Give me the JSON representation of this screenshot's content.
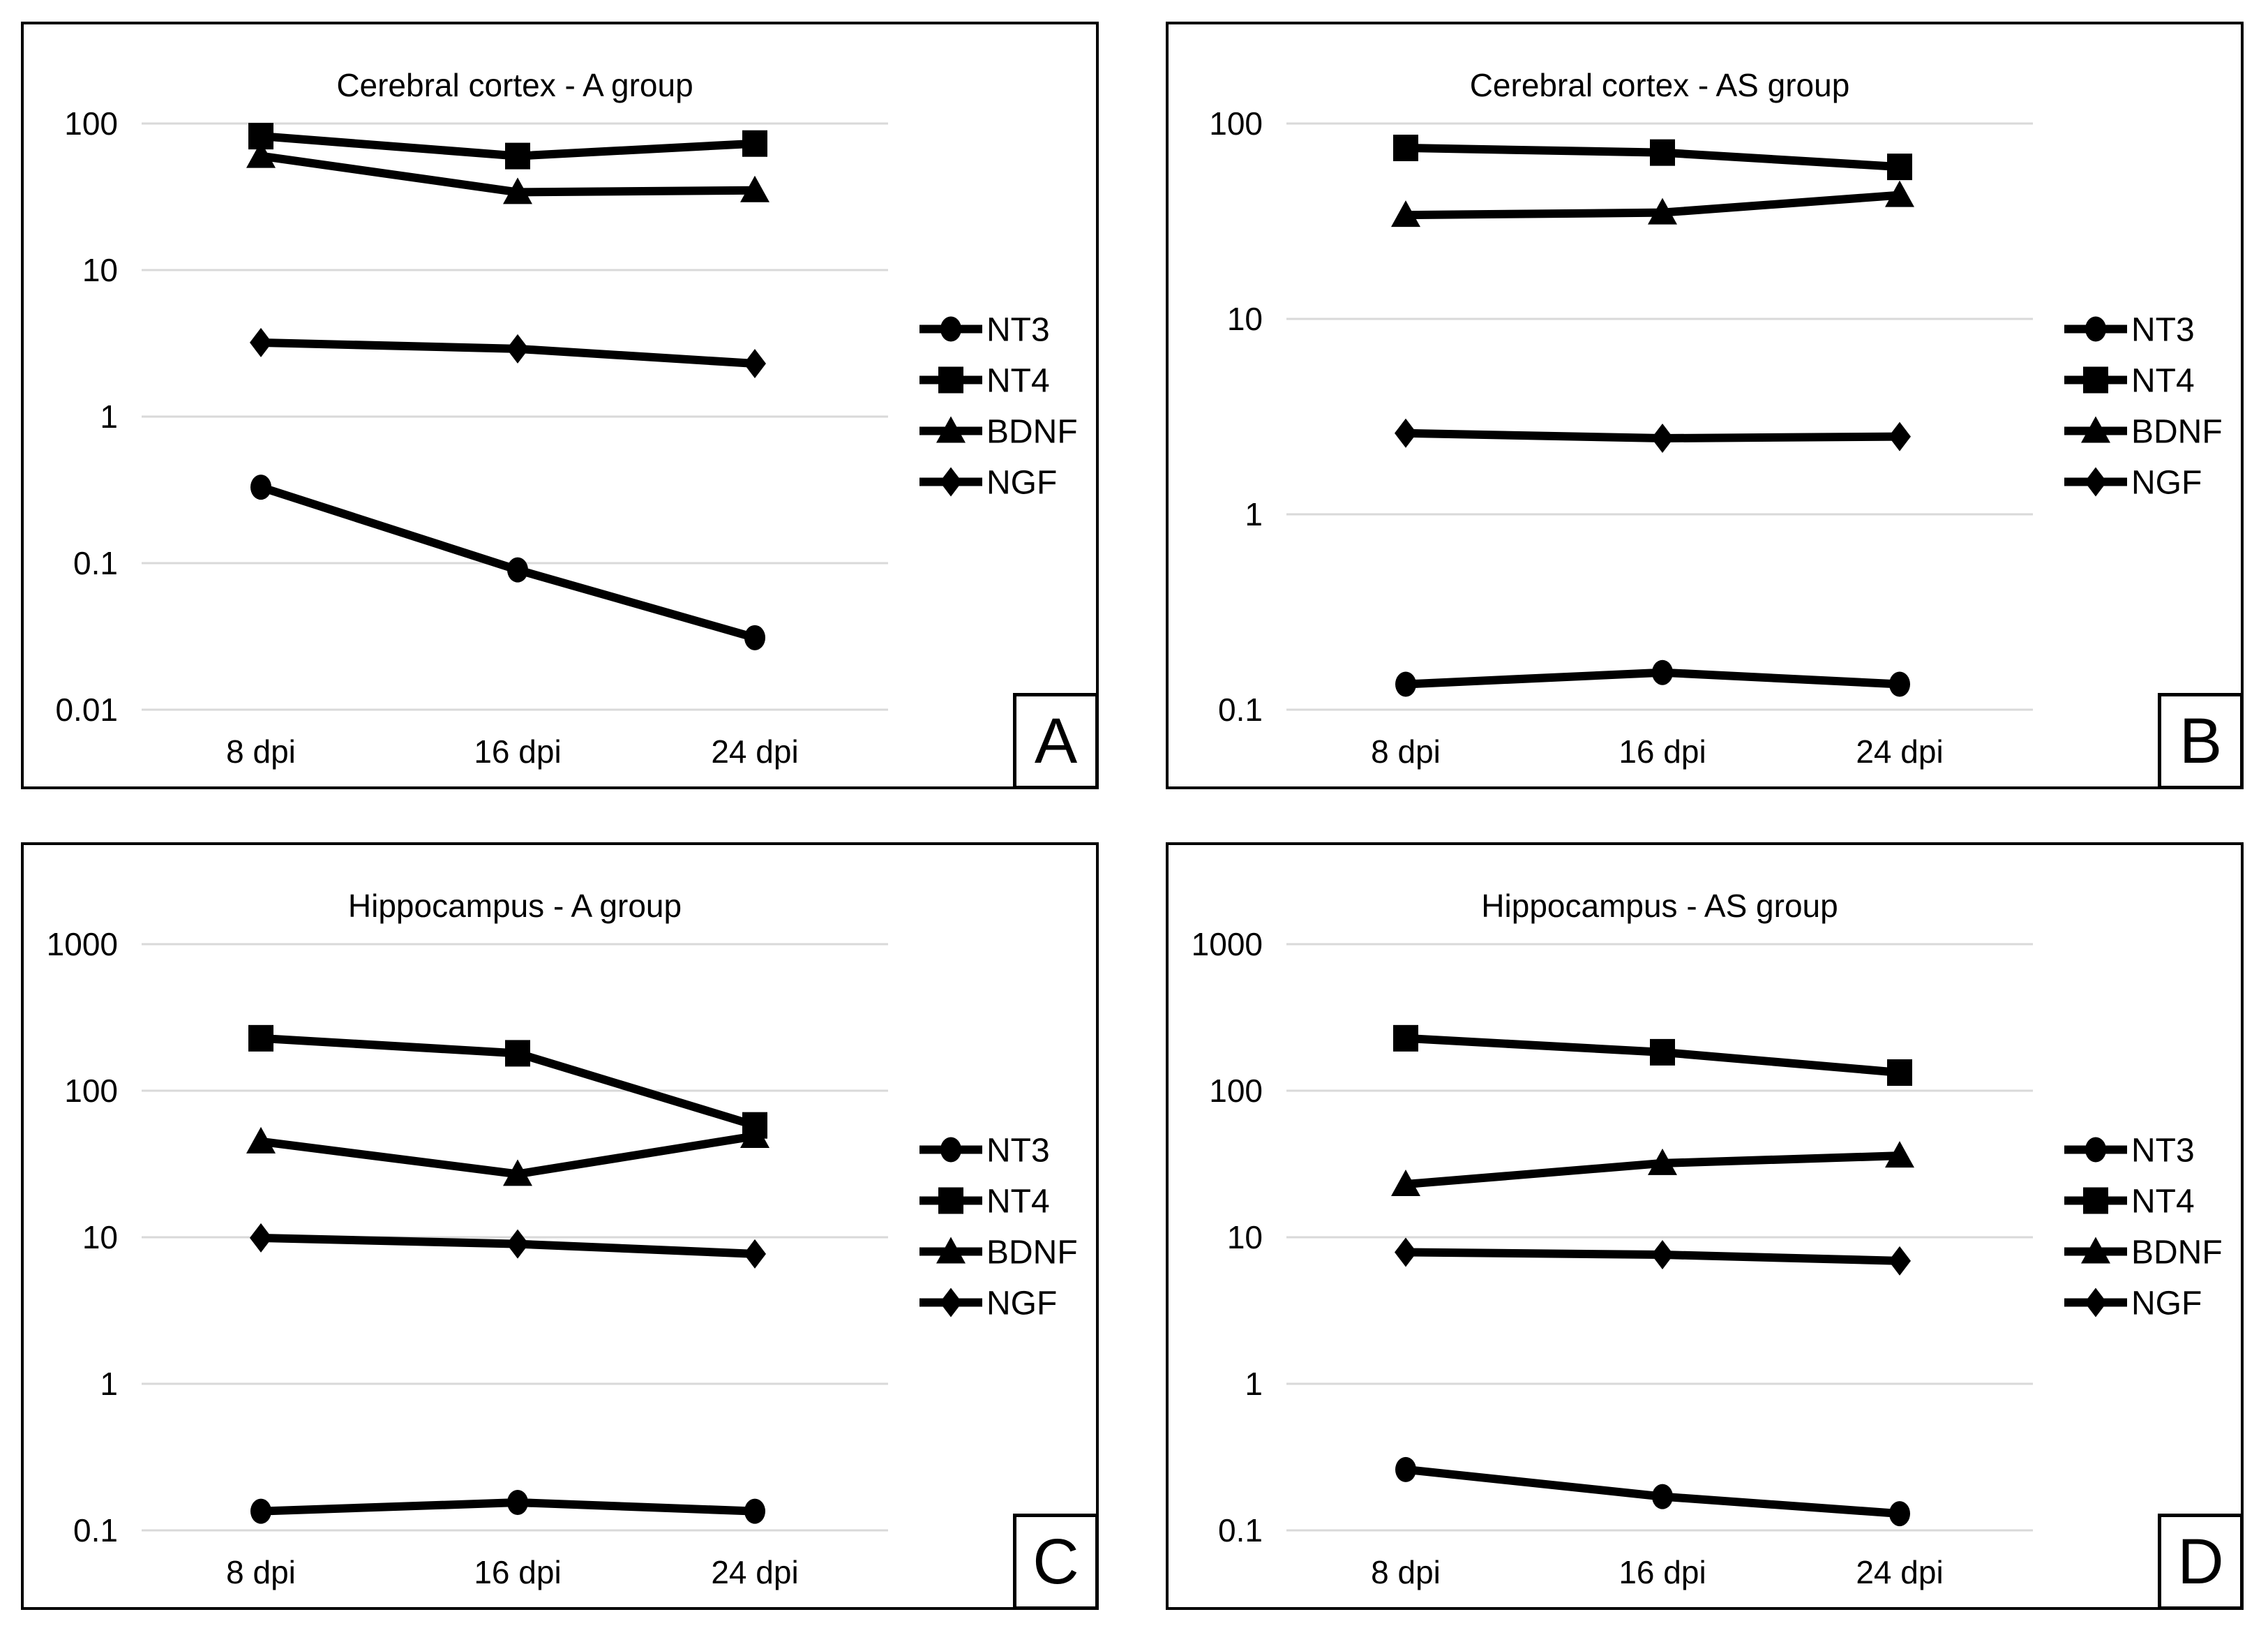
{
  "figure": {
    "background_color": "#ffffff",
    "line_color": "#000000",
    "gridline_color": "#d9d9d9",
    "panel_border_color": "#000000"
  },
  "chart_data": [
    {
      "type": "line",
      "panel_letter": "A",
      "title": "Cerebral cortex - A group",
      "x_categories": [
        "8 dpi",
        "16 dpi",
        "24 dpi"
      ],
      "y_scale": "log",
      "y_ticks": [
        100,
        10,
        1,
        0.1,
        0.01
      ],
      "grid": true,
      "legend_position": "right",
      "series": [
        {
          "name": "NT3",
          "marker": "circle",
          "values": [
            0.33,
            0.09,
            0.031
          ]
        },
        {
          "name": "NT4",
          "marker": "square",
          "values": [
            82,
            60,
            73
          ]
        },
        {
          "name": "BDNF",
          "marker": "triangle",
          "values": [
            60,
            34,
            35
          ]
        },
        {
          "name": "NGF",
          "marker": "diamond",
          "values": [
            3.2,
            2.9,
            2.3
          ]
        }
      ]
    },
    {
      "type": "line",
      "panel_letter": "B",
      "title": "Cerebral cortex - AS group",
      "x_categories": [
        "8 dpi",
        "16 dpi",
        "24 dpi"
      ],
      "y_scale": "log",
      "y_ticks": [
        100,
        10,
        1,
        0.1
      ],
      "grid": true,
      "legend_position": "right",
      "series": [
        {
          "name": "NT3",
          "marker": "circle",
          "values": [
            0.135,
            0.155,
            0.135
          ]
        },
        {
          "name": "NT4",
          "marker": "square",
          "values": [
            75,
            71,
            60
          ]
        },
        {
          "name": "BDNF",
          "marker": "triangle",
          "values": [
            34,
            35,
            43
          ]
        },
        {
          "name": "NGF",
          "marker": "diamond",
          "values": [
            2.6,
            2.45,
            2.5
          ]
        }
      ]
    },
    {
      "type": "line",
      "panel_letter": "C",
      "title": "Hippocampus - A group",
      "x_categories": [
        "8 dpi",
        "16 dpi",
        "24 dpi"
      ],
      "y_scale": "log",
      "y_ticks": [
        1000,
        100,
        10,
        1,
        0.1
      ],
      "grid": true,
      "legend_position": "right",
      "series": [
        {
          "name": "NT3",
          "marker": "circle",
          "values": [
            0.135,
            0.155,
            0.135
          ]
        },
        {
          "name": "NT4",
          "marker": "square",
          "values": [
            228,
            180,
            58
          ]
        },
        {
          "name": "BDNF",
          "marker": "triangle",
          "values": [
            45,
            27,
            49
          ]
        },
        {
          "name": "NGF",
          "marker": "diamond",
          "values": [
            9.9,
            9.0,
            7.7
          ]
        }
      ]
    },
    {
      "type": "line",
      "panel_letter": "D",
      "title": "Hippocampus - AS group",
      "x_categories": [
        "8 dpi",
        "16 dpi",
        "24 dpi"
      ],
      "y_scale": "log",
      "y_ticks": [
        1000,
        100,
        10,
        1,
        0.1
      ],
      "grid": true,
      "legend_position": "right",
      "series": [
        {
          "name": "NT3",
          "marker": "circle",
          "values": [
            0.26,
            0.17,
            0.13
          ]
        },
        {
          "name": "NT4",
          "marker": "square",
          "values": [
            228,
            183,
            133
          ]
        },
        {
          "name": "BDNF",
          "marker": "triangle",
          "values": [
            23,
            32,
            36
          ]
        },
        {
          "name": "NGF",
          "marker": "diamond",
          "values": [
            7.9,
            7.6,
            6.9
          ]
        }
      ]
    }
  ]
}
